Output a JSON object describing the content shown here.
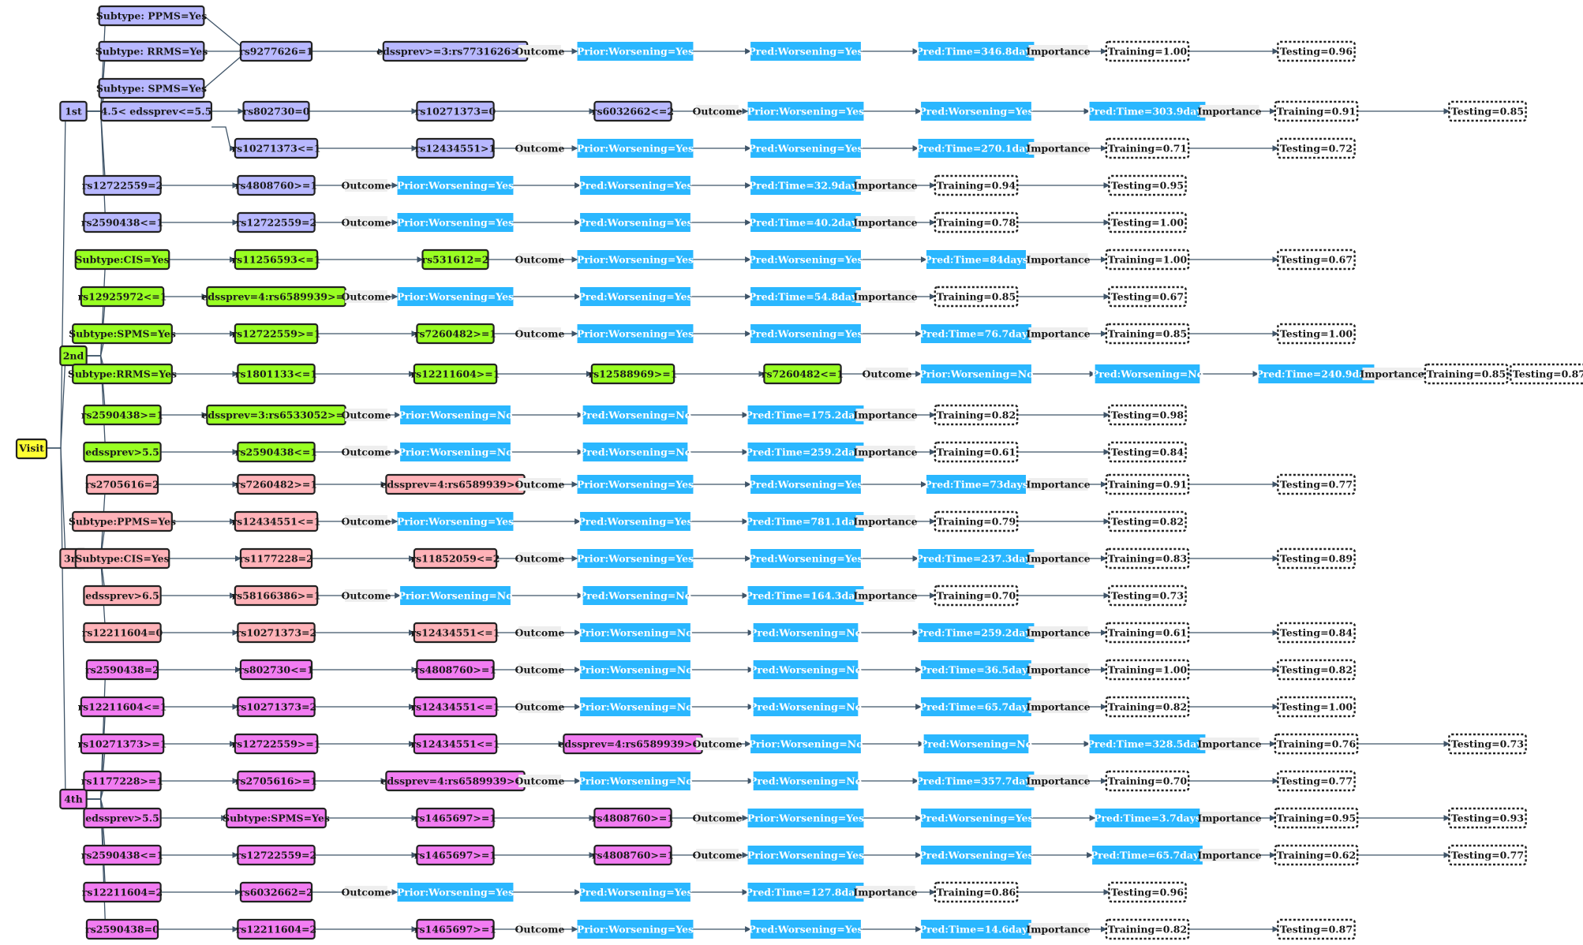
{
  "root": {
    "label": "Visit",
    "color": "#ffff33"
  },
  "colors": {
    "1st": "#b8b8ff",
    "2nd": "#99ff22",
    "3rd": "#ffb2b8",
    "4th": "#f27cf2",
    "outcome": "#2ab7ff",
    "plain_bg": "#eeeeee",
    "edge": "#3f5468"
  },
  "groups": [
    {
      "id": "1st",
      "label": "1st",
      "subtypes": [
        "Subtype: PPMS=Yes",
        "Subtype: RRMS=Yes",
        "Subtype: SPMS=Yes"
      ],
      "rows": [
        {
          "nodes": [
            "rs9277626=1",
            "edssprev>=3:rs7731626>=1"
          ],
          "prior": "Prior:Worsening=Yes",
          "pred": "Pred:Worsening=Yes",
          "time": "Pred:Time=346.8days",
          "training": "Training=1.00",
          "testing": "Testing=0.96"
        },
        {
          "nodes": [
            "4.5< edssprev<=5.5",
            "rs802730=0",
            "rs10271373=0",
            "rs6032662<=2"
          ],
          "prior": "Prior:Worsening=Yes",
          "pred": "Pred:Worsening=Yes",
          "time": "Pred:Time=303.9days",
          "training": "Training=0.91",
          "testing": "Testing=0.85"
        },
        {
          "nodes": [
            "rs10271373<=1",
            "rs12434551>1"
          ],
          "prior": "Prior:Worsening=Yes",
          "pred": "Pred:Worsening=Yes",
          "time": "Pred:Time=270.1days",
          "training": "Training=0.71",
          "testing": "Testing=0.72"
        },
        {
          "nodes": [
            "rs12722559=2",
            "rs4808760>=1"
          ],
          "prior": "Prior:Worsening=Yes",
          "pred": "Pred:Worsening=Yes",
          "time": "Pred:Time=32.9days",
          "training": "Training=0.94",
          "testing": "Testing=0.95"
        },
        {
          "nodes": [
            "rs2590438<=1",
            "rs12722559=2"
          ],
          "prior": "Prior:Worsening=Yes",
          "pred": "Pred:Worsening=Yes",
          "time": "Pred:Time=40.2days",
          "training": "Training=0.78",
          "testing": "Testing=1.00"
        }
      ]
    },
    {
      "id": "2nd",
      "label": "2nd",
      "rows": [
        {
          "nodes": [
            "Subtype:CIS=Yes",
            "rs11256593<=1",
            "rs531612=2"
          ],
          "prior": "Prior:Worsening=Yes",
          "pred": "Pred:Worsening=Yes",
          "time": "Pred:Time=84days",
          "training": "Training=1.00",
          "testing": "Testing=0.67"
        },
        {
          "nodes": [
            "rs12925972<=1",
            "edssprev=4:rs6589939>=1"
          ],
          "prior": "Prior:Worsening=Yes",
          "pred": "Pred:Worsening=Yes",
          "time": "Pred:Time=54.8days",
          "training": "Training=0.85",
          "testing": "Testing=0.67"
        },
        {
          "nodes": [
            "Subtype:SPMS=Yes",
            "rs12722559>=1",
            "rs7260482>=1"
          ],
          "prior": "Prior:Worsening=Yes",
          "pred": "Pred:Worsening=Yes",
          "time": "Pred:Time=76.7days",
          "training": "Training=0.85",
          "testing": "Testing=1.00"
        },
        {
          "nodes": [
            "Subtype:RRMS=Yes",
            "rs1801133<=1",
            "rs12211604>=1",
            "rs12588969>=1",
            "rs7260482<=1"
          ],
          "prior": "Prior:Worsening=No",
          "pred": "Pred:Worsening=No",
          "time": "Pred:Time=240.9days",
          "training": "Training=0.85",
          "testing": "Testing=0.87"
        },
        {
          "nodes": [
            "rs2590438>=1",
            "edssprev=3:rs6533052>=1"
          ],
          "prior": "Prior:Worsening=No",
          "pred": "Pred:Worsening=No",
          "time": "Pred:Time=175.2days",
          "training": "Training=0.82",
          "testing": "Testing=0.98"
        },
        {
          "nodes": [
            "edssprev>5.5",
            "rs2590438<=1"
          ],
          "prior": "Prior:Worsening=No",
          "pred": "Pred:Worsening=No",
          "time": "Pred:Time=259.2days",
          "training": "Training=0.61",
          "testing": "Testing=0.84"
        }
      ]
    },
    {
      "id": "3rd",
      "label": "3rd",
      "rows": [
        {
          "nodes": [
            "rs2705616=2",
            "rs7260482>=1",
            "edssprev=4:rs6589939>=1"
          ],
          "prior": "Prior:Worsening=Yes",
          "pred": "Pred:Worsening=Yes",
          "time": "Pred:Time=73days",
          "training": "Training=0.91",
          "testing": "Testing=0.77"
        },
        {
          "nodes": [
            "Subtype:PPMS=Yes",
            "rs12434551<=1"
          ],
          "prior": "Prior:Worsening=Yes",
          "pred": "Pred:Worsening=Yes",
          "time": "Pred:Time=781.1days",
          "training": "Training=0.79",
          "testing": "Testing=0.82"
        },
        {
          "nodes": [
            "Subtype:CIS=Yes",
            "rs1177228=2",
            "rs11852059<=2"
          ],
          "prior": "Prior:Worsening=Yes",
          "pred": "Pred:Worsening=Yes",
          "time": "Pred:Time=237.3days",
          "training": "Training=0.83",
          "testing": "Testing=0.89"
        },
        {
          "nodes": [
            "edssprev>6.5",
            "rs58166386>=1"
          ],
          "prior": "Prior:Worsening=No",
          "pred": "Pred:Worsening=No",
          "time": "Pred:Time=164.3days",
          "training": "Training=0.70",
          "testing": "Testing=0.73"
        },
        {
          "nodes": [
            "rs12211604=0",
            "rs10271373=2",
            "rs12434551<=1"
          ],
          "prior": "Prior:Worsening=No",
          "pred": "Pred:Worsening=No",
          "time": "Pred:Time=259.2days",
          "training": "Training=0.61",
          "testing": "Testing=0.84"
        }
      ]
    },
    {
      "id": "4th",
      "label": "4th",
      "rows": [
        {
          "nodes": [
            "rs2590438=2",
            "rs802730<=1",
            "rs4808760>=1"
          ],
          "prior": "Prior:Worsening=No",
          "pred": "Pred:Worsening=No",
          "time": "Pred:Time=36.5days",
          "training": "Training=1.00",
          "testing": "Testing=0.82"
        },
        {
          "nodes": [
            "rs12211604<=1",
            "rs10271373=2",
            "rs12434551<=1"
          ],
          "prior": "Prior:Worsening=No",
          "pred": "Pred:Worsening=No",
          "time": "Pred:Time=65.7days",
          "training": "Training=0.82",
          "testing": "Testing=1.00"
        },
        {
          "nodes": [
            "rs10271373>=1",
            "rs12722559>=1",
            "rs12434551<=1",
            "edssprev=4:rs6589939>=1"
          ],
          "prior": "Prior:Worsening=No",
          "pred": "Pred:Worsening=No",
          "time": "Pred:Time=328.5days",
          "training": "Training=0.76",
          "testing": "Testing=0.73"
        },
        {
          "nodes": [
            "rs1177228>=1",
            "rs2705616>=1",
            "edssprev=4:rs6589939>=1"
          ],
          "prior": "Prior:Worsening=No",
          "pred": "Pred:Worsening=No",
          "time": "Pred:Time=357.7days",
          "training": "Training=0.70",
          "testing": "Testing=0.77"
        },
        {
          "nodes": [
            "edssprev>5.5",
            "Subtype:SPMS=Yes",
            "rs1465697>=1",
            "rs4808760>=1"
          ],
          "prior": "Prior:Worsening=Yes",
          "pred": "Pred:Worsening=Yes",
          "time": "Pred:Time=3.7days",
          "training": "Training=0.95",
          "testing": "Testing=0.93"
        },
        {
          "nodes": [
            "rs2590438<=1",
            "rs12722559=2",
            "rs1465697>=1",
            "rs4808760>=1"
          ],
          "prior": "Prior:Worsening=Yes",
          "pred": "Pred:Worsening=Yes",
          "time": "Pred:Time=65.7days",
          "training": "Training=0.62",
          "testing": "Testing=0.77"
        },
        {
          "nodes": [
            "rs12211604=2",
            "rs6032662=2"
          ],
          "prior": "Prior:Worsening=Yes",
          "pred": "Pred:Worsening=Yes",
          "time": "Pred:Time=127.8days",
          "training": "Training=0.86",
          "testing": "Testing=0.96"
        },
        {
          "nodes": [
            "rs2590438=0",
            "rs12211604=2",
            "rs1465697>=1"
          ],
          "prior": "Prior:Worsening=Yes",
          "pred": "Pred:Worsening=Yes",
          "time": "Pred:Time=14.6days",
          "training": "Training=0.82",
          "testing": "Testing=0.87"
        }
      ]
    }
  ],
  "labels": {
    "outcome": "Outcome",
    "importance": "Importance"
  }
}
